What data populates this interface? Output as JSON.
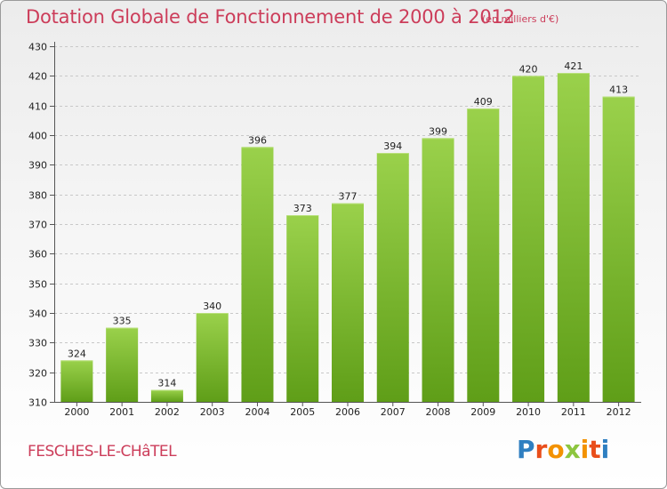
{
  "header": {
    "title": "Dotation Globale de Fonctionnement de 2000 à 2012",
    "unit": "(en milliers d'€)"
  },
  "footer": {
    "commune": "FESCHES-LE-CHâTEL",
    "logo_letters": [
      "P",
      "r",
      "o",
      "x",
      "i",
      "t",
      "i"
    ],
    "logo_colors": [
      "#2f7fc1",
      "#e94e1b",
      "#f39200",
      "#8dc63f",
      "#f39200",
      "#e94e1b",
      "#2f7fc1"
    ]
  },
  "colors": {
    "bar_light": "#9ad14b",
    "bar_dark": "#5f9e18",
    "grid": "#c8c8c8",
    "title": "#cc3d5a"
  },
  "chart_data": {
    "type": "bar",
    "title": "Dotation Globale de Fonctionnement de 2000 à 2012",
    "xlabel": "",
    "ylabel": "en milliers d'€",
    "categories": [
      "2000",
      "2001",
      "2002",
      "2003",
      "2004",
      "2005",
      "2006",
      "2007",
      "2008",
      "2009",
      "2010",
      "2011",
      "2012"
    ],
    "values": [
      324,
      335,
      314,
      340,
      396,
      373,
      377,
      394,
      399,
      409,
      420,
      421,
      413
    ],
    "ylim": [
      310,
      430
    ],
    "yticks": [
      310,
      320,
      330,
      340,
      350,
      360,
      370,
      380,
      390,
      400,
      410,
      420,
      430
    ],
    "grid": true
  }
}
